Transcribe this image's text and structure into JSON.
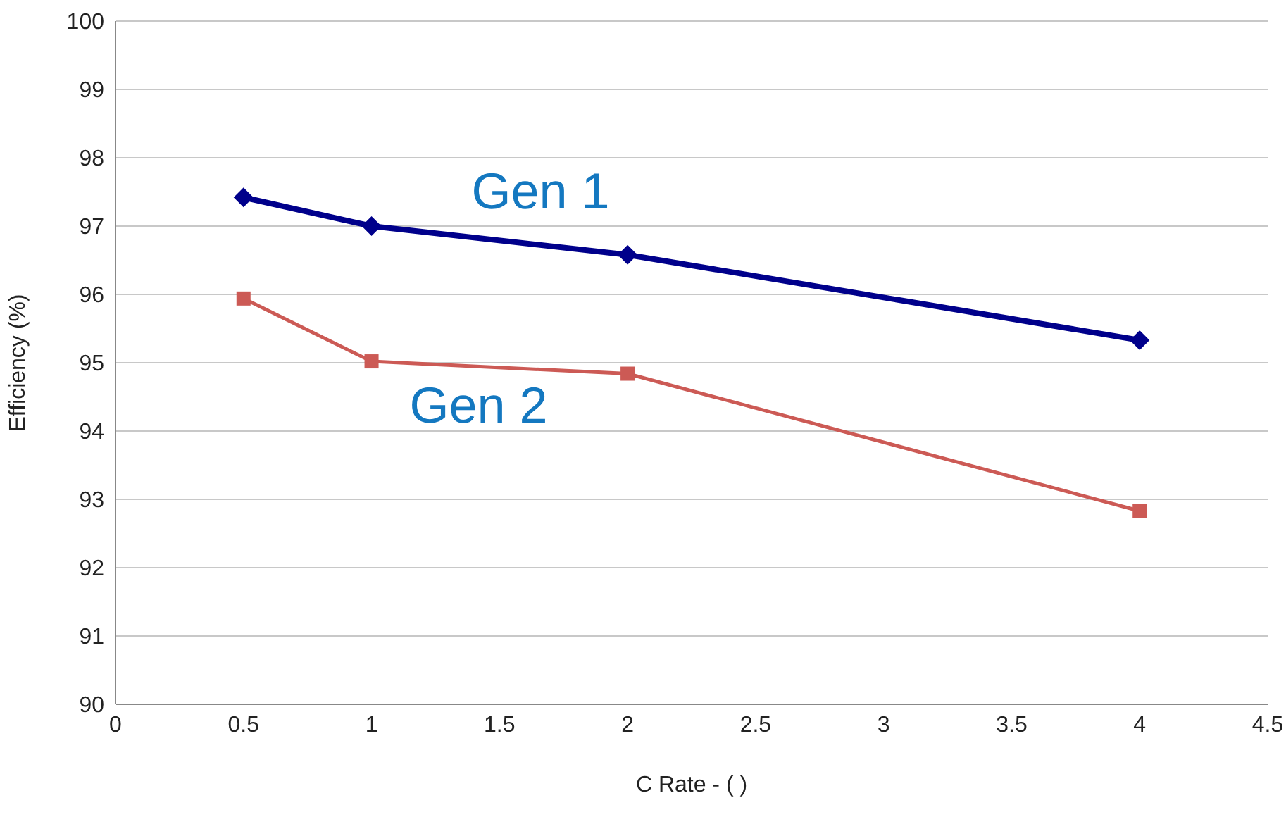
{
  "chart_data": {
    "type": "line",
    "xlabel": "C Rate - ( )",
    "ylabel": "Efficiency (%)",
    "x": [
      0.5,
      1,
      2,
      4
    ],
    "series": [
      {
        "name": "Gen 1",
        "color": "#00008b",
        "values": [
          97.42,
          97.0,
          96.58,
          95.33
        ],
        "marker": "diamond"
      },
      {
        "name": "Gen 2",
        "color": "#cc5a55",
        "values": [
          95.94,
          95.02,
          94.84,
          92.83
        ],
        "marker": "square"
      }
    ],
    "xlim": [
      0,
      4.5
    ],
    "xticks": [
      0,
      0.5,
      1,
      1.5,
      2,
      2.5,
      3,
      3.5,
      4,
      4.5
    ],
    "ylim": [
      90,
      100
    ],
    "yticks": [
      90,
      91,
      92,
      93,
      94,
      95,
      96,
      97,
      98,
      99,
      100
    ],
    "grid": "y",
    "legend": false,
    "line_style": "solid"
  }
}
